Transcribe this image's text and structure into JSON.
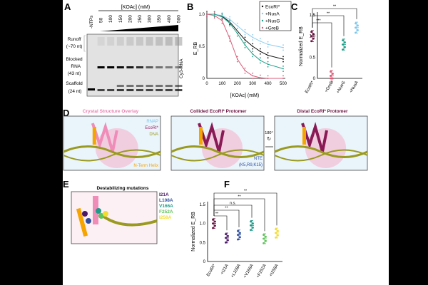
{
  "panel_labels": [
    "A",
    "B",
    "C",
    "D",
    "E",
    "F"
  ],
  "gel": {
    "header": "[KOAc] (mM)",
    "lanes": [
      "-NTPs",
      "50",
      "100",
      "150",
      "200",
      "250",
      "300",
      "350",
      "400",
      "500"
    ],
    "band_labels": [
      {
        "l1": "Runoff",
        "l2": "(~70 nt)"
      },
      {
        "l1": "Blocked",
        "l2": "RNA",
        "l3": "(43 nt)"
      },
      {
        "l1": "Scaffold",
        "l2": "(24 nt)"
      }
    ],
    "side_label": "Cy3-RNA",
    "blocked_intensity": [
      0,
      1,
      1,
      0.95,
      0.9,
      0.8,
      0.6,
      0.5,
      0.45,
      0.4
    ],
    "scaffold_intensity": [
      1,
      0.7,
      0.7,
      0.75,
      0.75,
      0.7,
      0.7,
      0.7,
      0.7,
      0.7
    ]
  },
  "chart_data": [
    {
      "type": "line",
      "title": "",
      "xlabel": "[KOAc] (mM)",
      "ylabel": "E_RB",
      "xlim": [
        0,
        500
      ],
      "ylim": [
        0,
        1
      ],
      "xticks": [
        "0",
        "100",
        "200",
        "300",
        "400",
        "500"
      ],
      "yticks": [
        "0",
        "0.5",
        "1.0"
      ],
      "legend": "top-right",
      "x": [
        0,
        50,
        100,
        150,
        200,
        250,
        300,
        350,
        400,
        500
      ],
      "series": [
        {
          "name": "EcoRI*",
          "color": "#111111",
          "values": [
            1,
            1,
            0.97,
            0.88,
            0.74,
            0.6,
            0.5,
            0.42,
            0.36,
            0.3
          ]
        },
        {
          "name": "+NusA",
          "color": "#8fcdf0",
          "values": [
            1,
            1,
            0.98,
            0.92,
            0.82,
            0.72,
            0.64,
            0.58,
            0.53,
            0.48
          ]
        },
        {
          "name": "+NusG",
          "color": "#1f9e88",
          "values": [
            1,
            1,
            0.96,
            0.86,
            0.7,
            0.52,
            0.38,
            0.28,
            0.22,
            0.15
          ]
        },
        {
          "name": "+GreB",
          "color": "#d95c78",
          "values": [
            1,
            0.98,
            0.9,
            0.62,
            0.3,
            0.12,
            0.04,
            0.01,
            0,
            0
          ]
        }
      ]
    },
    {
      "type": "scatter",
      "ylabel": "Normalized E_RB",
      "ylim": [
        0,
        1.5
      ],
      "yticks": [
        "0",
        "0.5",
        "1.0",
        "1.5"
      ],
      "categories": [
        "EcoRI*",
        "+GreB",
        "+NusG",
        "+NusA"
      ],
      "values": [
        1.0,
        0.06,
        0.8,
        1.2
      ],
      "colors": [
        "#6b1040",
        "#d95c78",
        "#1f9e88",
        "#7cc6ee"
      ],
      "significance": [
        {
          "label": "***",
          "to": "+GreB"
        },
        {
          "label": "**",
          "to": "+NusG"
        },
        {
          "label": "**",
          "to": "+NusA"
        }
      ]
    },
    {
      "type": "scatter",
      "ylabel": "Normalized E_RB",
      "ylim": [
        0,
        1.5
      ],
      "yticks": [
        "0",
        "0.5",
        "1.0",
        "1.5"
      ],
      "categories": [
        "EcoRI*",
        "+I21A",
        "+L108A",
        "+V166A",
        "+F252A",
        "+I258A"
      ],
      "values": [
        1.0,
        0.62,
        0.7,
        0.95,
        0.6,
        0.75
      ],
      "colors": [
        "#6b1040",
        "#4b1a66",
        "#2f4f9e",
        "#1e9a8a",
        "#5fc45a",
        "#f2dc2e"
      ],
      "significance": [
        {
          "label": "**",
          "to": "+I21A"
        },
        {
          "label": "**",
          "to": "+L108A"
        },
        {
          "label": "n.s.",
          "to": "+V166A"
        },
        {
          "label": "**",
          "to": "+F252A"
        },
        {
          "label": "**",
          "to": "+I258A"
        }
      ]
    }
  ],
  "structures": {
    "titles": [
      "Crystal Structure Overlay",
      "Collided EcoRI* Protomer",
      "Distal EcoRI* Protomer"
    ],
    "legend": [
      "RNAP",
      "EcoRI*",
      "DNA"
    ],
    "helix_label": "N-Term Helix",
    "nte_label": "NTE",
    "nte_residues": "(K5,R9,K15)",
    "rotation": "180°"
  },
  "mutations": {
    "title": "Destabilizing mutations",
    "items": [
      "I21A",
      "L108A",
      "V166A",
      "F252A",
      "I258A"
    ]
  }
}
